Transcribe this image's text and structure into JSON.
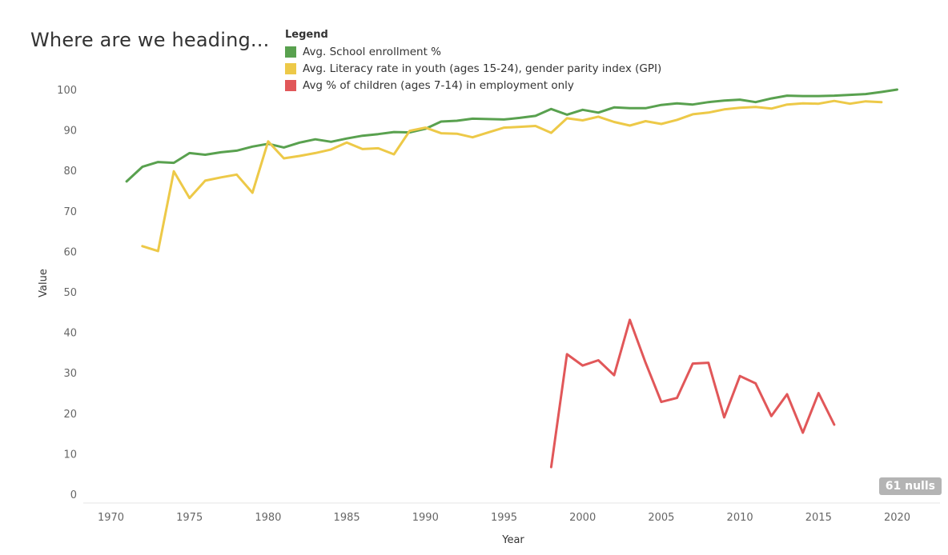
{
  "title": "Where are we heading...",
  "legend": {
    "title": "Legend",
    "items": [
      {
        "label": "Avg. School enrollment %",
        "color": "#59a14f"
      },
      {
        "label": "Avg. Literacy rate in youth (ages 15-24), gender parity index (GPI)",
        "color": "#edc948"
      },
      {
        "label": "Avg % of children (ages 7-14) in employment only",
        "color": "#e15759"
      }
    ]
  },
  "nulls_badge": "61 nulls",
  "chart_data": {
    "type": "line",
    "xlabel": "Year",
    "ylabel": "Value",
    "xlim": [
      1966,
      2021
    ],
    "ylim": [
      0,
      105
    ],
    "xticks": [
      1970,
      1975,
      1980,
      1985,
      1990,
      1995,
      2000,
      2005,
      2010,
      2015,
      2020
    ],
    "yticks": [
      0,
      10,
      20,
      30,
      40,
      50,
      60,
      70,
      80,
      90,
      100
    ],
    "grid": false,
    "legend_position": "top",
    "series": [
      {
        "name": "Avg. School enrollment %",
        "color": "#59a14f",
        "x": [
          1971,
          1972,
          1973,
          1974,
          1975,
          1976,
          1977,
          1978,
          1979,
          1980,
          1981,
          1982,
          1983,
          1984,
          1985,
          1986,
          1987,
          1988,
          1989,
          1990,
          1991,
          1992,
          1993,
          1994,
          1995,
          1996,
          1997,
          1998,
          1999,
          2000,
          2001,
          2002,
          2003,
          2004,
          2005,
          2006,
          2007,
          2008,
          2009,
          2010,
          2011,
          2012,
          2013,
          2014,
          2015,
          2016,
          2017,
          2018,
          2019,
          2020
        ],
        "values": [
          77.3,
          80.9,
          82.1,
          81.9,
          84.3,
          83.9,
          84.5,
          84.9,
          85.9,
          86.6,
          85.7,
          86.9,
          87.7,
          87.1,
          87.9,
          88.6,
          89.0,
          89.5,
          89.4,
          90.3,
          92.1,
          92.3,
          92.8,
          92.7,
          92.6,
          93.0,
          93.5,
          95.2,
          93.8,
          95.0,
          94.3,
          95.6,
          95.4,
          95.4,
          96.2,
          96.6,
          96.3,
          96.9,
          97.3,
          97.5,
          96.9,
          97.8,
          98.5,
          98.4,
          98.4,
          98.5,
          98.7,
          98.9,
          99.4,
          100.0
        ]
      },
      {
        "name": "Avg. Literacy rate in youth (ages 15-24), gender parity index (GPI)",
        "color": "#edc948",
        "x": [
          1972,
          1973,
          1974,
          1975,
          1976,
          1977,
          1978,
          1979,
          1980,
          1981,
          1982,
          1983,
          1984,
          1985,
          1986,
          1987,
          1988,
          1989,
          1990,
          1991,
          1992,
          1993,
          1994,
          1995,
          1996,
          1997,
          1998,
          1999,
          2000,
          2001,
          2002,
          2003,
          2004,
          2005,
          2006,
          2007,
          2008,
          2009,
          2010,
          2011,
          2012,
          2013,
          2014,
          2015,
          2016,
          2017,
          2018,
          2019
        ],
        "values": [
          61.3,
          60.1,
          79.8,
          73.2,
          77.5,
          78.3,
          79.0,
          74.5,
          87.2,
          83.0,
          83.6,
          84.3,
          85.2,
          86.9,
          85.3,
          85.5,
          84.0,
          89.8,
          90.6,
          89.2,
          89.1,
          88.2,
          89.4,
          90.6,
          90.8,
          91.0,
          89.3,
          92.9,
          92.4,
          93.3,
          92.0,
          91.1,
          92.2,
          91.5,
          92.5,
          93.9,
          94.3,
          95.1,
          95.5,
          95.7,
          95.3,
          96.3,
          96.6,
          96.5,
          97.2,
          96.5,
          97.1,
          96.9
        ]
      },
      {
        "name": "Avg % of children (ages 7-14) in employment only",
        "color": "#e15759",
        "x": [
          1998,
          1999,
          2000,
          2001,
          2002,
          2003,
          2004,
          2005,
          2006,
          2007,
          2008,
          2009,
          2010,
          2011,
          2012,
          2013,
          2014,
          2015,
          2016
        ],
        "values": [
          6.7,
          34.6,
          31.8,
          33.1,
          29.4,
          43.1,
          32.5,
          22.8,
          23.8,
          32.3,
          32.5,
          19.0,
          29.2,
          27.4,
          19.3,
          24.7,
          15.2,
          25.0,
          17.2
        ]
      }
    ]
  }
}
